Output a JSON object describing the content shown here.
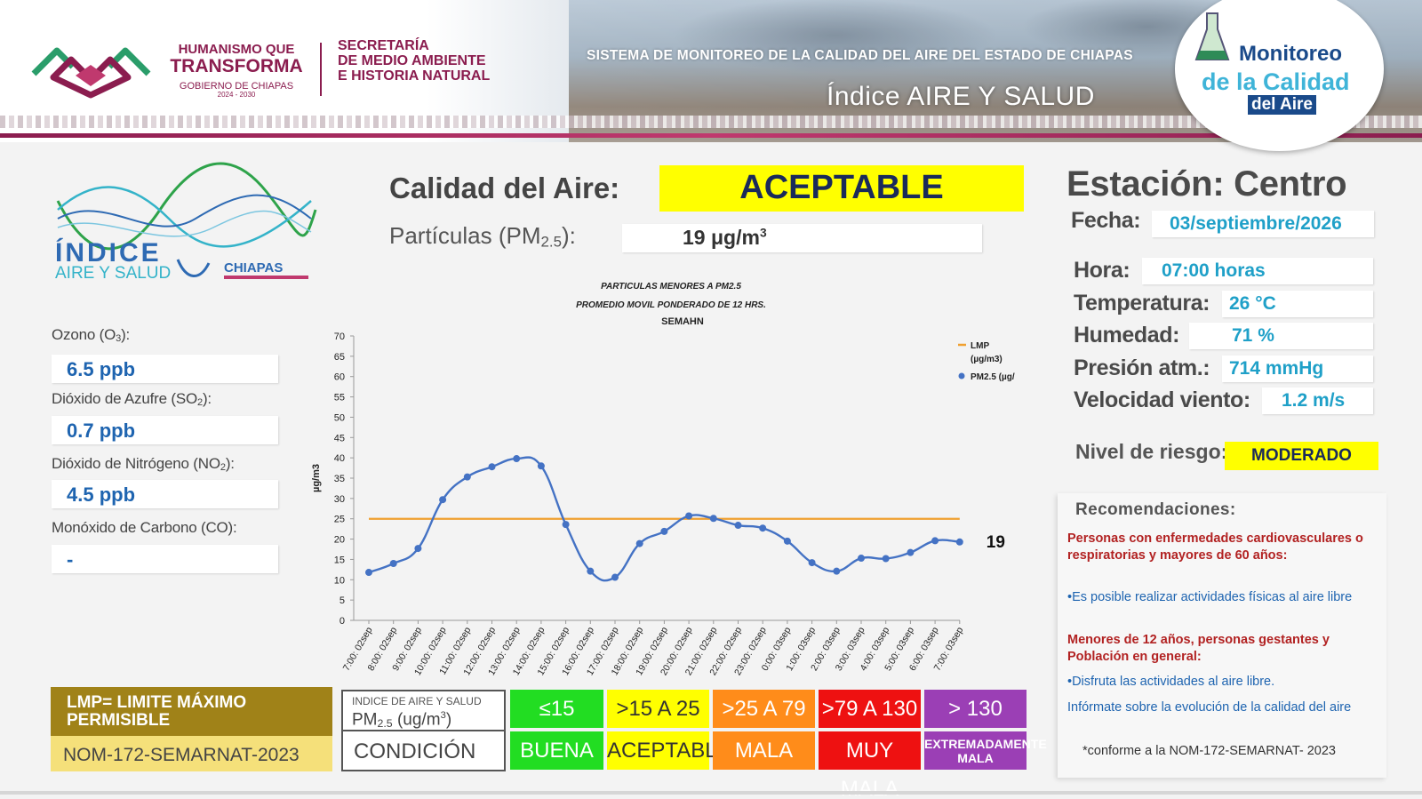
{
  "header": {
    "gov_line1": "HUMANISMO QUE",
    "gov_line2": "TRANSFORMA",
    "gov_line3": "GOBIERNO DE CHIAPAS",
    "gov_line4": "2024 - 2030",
    "secretaria_line1": "SECRETARÍA",
    "secretaria_line2": "DE MEDIO AMBIENTE",
    "secretaria_line3": "E HISTORIA NATURAL",
    "system_title": "SISTEMA DE MONITOREO DE LA CALIDAD DEL AIRE DEL ESTADO DE CHIAPAS",
    "system_subtitle": "Índice AIRE Y SALUD",
    "logo_line1": "Monitoreo",
    "logo_line2": "de la Calidad",
    "logo_line3": "del Aire"
  },
  "indice_logo": {
    "line1": "ÍNDICE",
    "line2": "AIRE Y SALUD",
    "line3": "CHIAPAS"
  },
  "pollutants": {
    "ozono_label": "Ozono (O",
    "ozono_sub": "3",
    "ozono_value": "6.5 ppb",
    "so2_label": "Dióxido de Azufre  (SO",
    "so2_sub": "2",
    "so2_value": "0.7 ppb",
    "no2_label": "Dióxido de Nitrógeno (NO",
    "no2_sub": "2",
    "no2_value": "4.5 ppb",
    "co_label": "Monóxido de Carbono (CO):",
    "co_value": "-"
  },
  "calidad": {
    "label": "Calidad del Aire:",
    "value": "ACEPTABLE",
    "pm_label": "Partículas (PM",
    "pm_sub": "2.5",
    "pm_label_end": "):",
    "pm_value": "19 μg/m",
    "pm_unit_sup": "3"
  },
  "station": {
    "title": "Estación: Centro",
    "fecha_label": "Fecha:",
    "fecha": "03/septiembre/2026",
    "hora_label": "Hora:",
    "hora": "07:00 horas",
    "temp_label": "Temperatura:",
    "temp": "26 °C",
    "humedad_label": "Humedad:",
    "humedad": "71 %",
    "presion_label": "Presión atm.:",
    "presion": "714 mmHg",
    "viento_label": "Velocidad viento:",
    "viento": "1.2 m/s",
    "riesgo_label": "Nivel de riesgo:",
    "riesgo": "MODERADO"
  },
  "recommendations": {
    "title": "Recomendaciones:",
    "group1": "Personas con enfermedades cardiovasculares o respiratorias y mayores de 60 años:",
    "rec1": "•Es posible realizar actividades físicas al aire libre",
    "group2": "Menores de 12 años, personas gestantes y Población en general:",
    "rec2": "•Disfruta las actividades al aire libre.",
    "rec3": "Infórmate sobre la evolución de la calidad del aire",
    "note": "*conforme a la NOM-172-SEMARNAT- 2023"
  },
  "lmp": {
    "title": "LMP= LIMITE MÁXIMO PERMISIBLE",
    "nom": "NOM-172-SEMARNAT-2023"
  },
  "scale": {
    "row1_label_a": "INDICE DE AIRE Y SALUD",
    "row1_label_b": "PM",
    "row1_label_sub": "2.5",
    "row1_label_unit": " (ug/m",
    "row1_label_sup": "3",
    "row1_label_end": ")",
    "row2_label": "CONDICIÓN",
    "ranges": [
      "≤15",
      ">15 A 25",
      ">25 A 79",
      ">79 A 130",
      "> 130"
    ],
    "conditions": [
      "BUENA",
      "ACEPTABLE",
      "MALA",
      "MUY MALA",
      "EXTREMADAMENTE MALA"
    ],
    "colors": [
      "#22dd22",
      "#ffff00",
      "#ff8c1a",
      "#ee1111",
      "#9b3fb5"
    ]
  },
  "chart_data": {
    "type": "line",
    "title": "PARTICULAS MENORES A PM2.5",
    "subtitle": "PROMEDIO MOVIL PONDERADO DE 12 HRS.",
    "subtitle2": "SEMAHN",
    "ylabel": "µg/m3",
    "xlabel": "",
    "ylim": [
      0,
      70
    ],
    "yticks": [
      0,
      5,
      10,
      15,
      20,
      25,
      30,
      35,
      40,
      45,
      50,
      55,
      60,
      65,
      70
    ],
    "categories": [
      "7:00: 02sep",
      "8:00: 02sep",
      "9:00: 02sep",
      "10:00: 02sep",
      "11:00: 02sep",
      "12:00: 02sep",
      "13:00: 02sep",
      "14:00: 02sep",
      "15:00: 02sep",
      "16:00: 02sep",
      "17:00: 02sep",
      "18:00: 02sep",
      "19:00: 02sep",
      "20:00: 02sep",
      "21:00: 02sep",
      "22:00: 02sep",
      "23:00: 02sep",
      "0:00: 03sep",
      "1:00: 03sep",
      "2:00: 03sep",
      "3:00: 03sep",
      "4:00: 03sep",
      "5:00: 03sep",
      "6:00: 03sep",
      "7:00: 03sep"
    ],
    "series": [
      {
        "name": "LMP (µg/m3)",
        "color": "#f0a030",
        "values": [
          25,
          25,
          25,
          25,
          25,
          25,
          25,
          25,
          25,
          25,
          25,
          25,
          25,
          25,
          25,
          25,
          25,
          25,
          25,
          25,
          25,
          25,
          25,
          25,
          25
        ]
      },
      {
        "name": "PM2.5  (µg/",
        "color": "#4472c4",
        "values": [
          11.8,
          14,
          17.7,
          29.7,
          35.3,
          37.8,
          39.8,
          38,
          23.6,
          12.1,
          10.6,
          18.9,
          21.9,
          25.7,
          25.1,
          23.4,
          22.7,
          19.5,
          14.2,
          12.1,
          15.3,
          15.2,
          16.7,
          19.6,
          19.3
        ]
      }
    ],
    "last_value_label": "19",
    "legend_position": "right",
    "grid": false
  }
}
